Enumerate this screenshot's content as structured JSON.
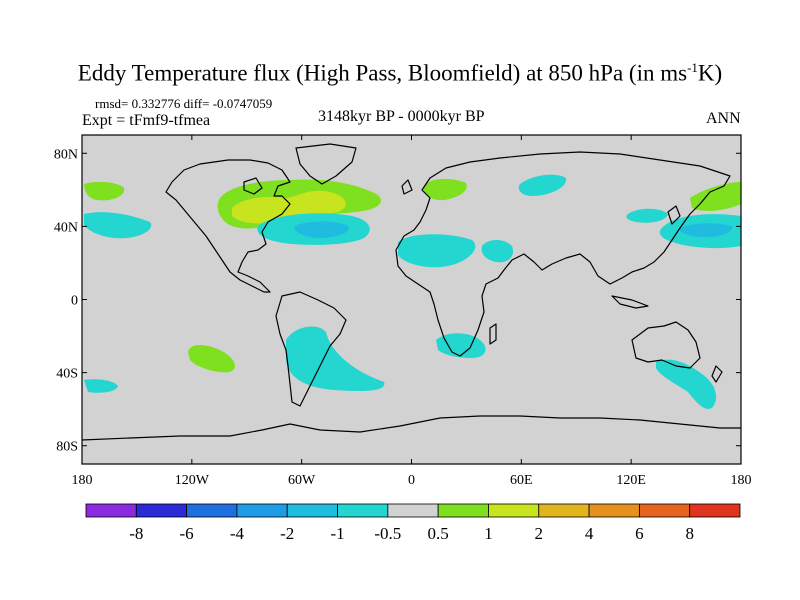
{
  "title": {
    "main": "Eddy Temperature flux (High Pass, Bloomfield) at 850 hPa (in ms",
    "exponent": "-1",
    "unit_end": "K)"
  },
  "stats": "rmsd= 0.332776 diff= -0.0747059",
  "expt": "Expt = tFmf9-tfmea",
  "period": "3148kyr BP - 0000kyr BP",
  "season": "ANN",
  "map": {
    "background_color": "#d2d2d2",
    "lat_ticks": [
      {
        "value": 80,
        "label": "80N"
      },
      {
        "value": 40,
        "label": "40N"
      },
      {
        "value": 0,
        "label": "0"
      },
      {
        "value": -40,
        "label": "40S"
      },
      {
        "value": -80,
        "label": "80S"
      }
    ],
    "lon_ticks": [
      {
        "value": -180,
        "label": "180"
      },
      {
        "value": -120,
        "label": "120W"
      },
      {
        "value": -60,
        "label": "60W"
      },
      {
        "value": 0,
        "label": "0"
      },
      {
        "value": 60,
        "label": "60E"
      },
      {
        "value": 120,
        "label": "120E"
      },
      {
        "value": 180,
        "label": "180"
      }
    ]
  },
  "colorbar": {
    "colors": [
      "#8a2be2",
      "#2a2ad6",
      "#1e6fe0",
      "#1e9de6",
      "#1fbce0",
      "#24d6d0",
      "#d2d2d2",
      "#7fe01f",
      "#c8e41e",
      "#e2b41e",
      "#e6901e",
      "#e6641e",
      "#e0341e"
    ],
    "labels": [
      "-8",
      "-6",
      "-4",
      "-2",
      "-1",
      "-0.5",
      "0.5",
      "1",
      "2",
      "4",
      "6",
      "8"
    ]
  }
}
